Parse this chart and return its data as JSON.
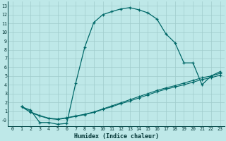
{
  "xlabel": "Humidex (Indice chaleur)",
  "xlim": [
    -0.5,
    23.5
  ],
  "ylim": [
    -0.7,
    13.5
  ],
  "xticks": [
    0,
    1,
    2,
    3,
    4,
    5,
    6,
    7,
    8,
    9,
    10,
    11,
    12,
    13,
    14,
    15,
    16,
    17,
    18,
    19,
    20,
    21,
    22,
    23
  ],
  "yticks": [
    0,
    1,
    2,
    3,
    4,
    5,
    6,
    7,
    8,
    9,
    10,
    11,
    12,
    13
  ],
  "ytick_labels": [
    "-0",
    "1",
    "2",
    "3",
    "4",
    "5",
    "6",
    "7",
    "8",
    "9",
    "10",
    "11",
    "12",
    "13"
  ],
  "bg_color": "#bee8e8",
  "line_color": "#006868",
  "grid_color": "#a0cccc",
  "arch_x": [
    1,
    2,
    3,
    4,
    5,
    6,
    7,
    8,
    9,
    10,
    11,
    12,
    13,
    14,
    15,
    16,
    17,
    18,
    19,
    20,
    21,
    22,
    23
  ],
  "arch_y": [
    1.5,
    1.1,
    -0.3,
    -0.3,
    -0.5,
    -0.4,
    4.2,
    8.3,
    11.1,
    12.0,
    12.35,
    12.65,
    12.8,
    12.55,
    12.2,
    11.5,
    9.8,
    8.8,
    6.5,
    6.5,
    4.0,
    5.0,
    5.5
  ],
  "line1_x": [
    1,
    2,
    3,
    4,
    5,
    6,
    7,
    8,
    9,
    10,
    11,
    12,
    13,
    14,
    15,
    16,
    17,
    18,
    19,
    20,
    21,
    22,
    23
  ],
  "line1_y": [
    1.5,
    0.9,
    0.5,
    0.2,
    0.1,
    0.25,
    0.45,
    0.65,
    0.9,
    1.25,
    1.6,
    1.95,
    2.3,
    2.65,
    3.0,
    3.35,
    3.65,
    3.9,
    4.2,
    4.5,
    4.8,
    5.0,
    5.3
  ],
  "line2_x": [
    1,
    2,
    3,
    4,
    5,
    6,
    7,
    8,
    9,
    10,
    11,
    12,
    13,
    14,
    15,
    16,
    17,
    18,
    19,
    20,
    21,
    22,
    23
  ],
  "line2_y": [
    1.5,
    0.85,
    0.45,
    0.15,
    0.05,
    0.2,
    0.4,
    0.6,
    0.85,
    1.2,
    1.5,
    1.85,
    2.15,
    2.5,
    2.85,
    3.2,
    3.5,
    3.75,
    4.0,
    4.3,
    4.6,
    4.8,
    5.1
  ]
}
